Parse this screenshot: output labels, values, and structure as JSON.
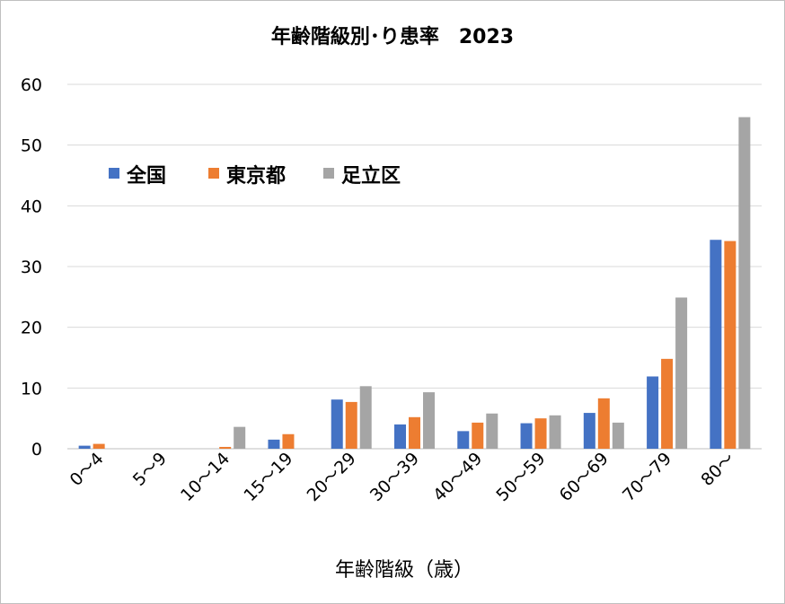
{
  "chart_data": {
    "type": "bar",
    "title": "年齢階級別･り患率　2023",
    "xlabel": "年齢階級（歳）",
    "ylabel": "",
    "ylim": [
      0,
      60
    ],
    "yticks": [
      0,
      10,
      20,
      30,
      40,
      50,
      60
    ],
    "grid": true,
    "legend_position": "top-left",
    "categories": [
      "0～4",
      "5～9",
      "10～14",
      "15～19",
      "20～29",
      "30～39",
      "40～49",
      "50～59",
      "60～69",
      "70～79",
      "80～"
    ],
    "series": [
      {
        "name": "全国",
        "color": "#4472C4",
        "values": [
          0.5,
          0.0,
          0.0,
          1.5,
          8.1,
          4.0,
          2.9,
          4.2,
          5.9,
          11.9,
          34.4
        ]
      },
      {
        "name": "東京都",
        "color": "#ED7D31",
        "values": [
          0.8,
          0.0,
          0.3,
          2.4,
          7.7,
          5.2,
          4.3,
          5.0,
          8.3,
          14.8,
          34.2
        ]
      },
      {
        "name": "足立区",
        "color": "#A5A5A5",
        "values": [
          0.0,
          0.0,
          3.6,
          0.0,
          10.3,
          9.3,
          5.8,
          5.5,
          4.3,
          24.9,
          54.6
        ]
      }
    ]
  }
}
